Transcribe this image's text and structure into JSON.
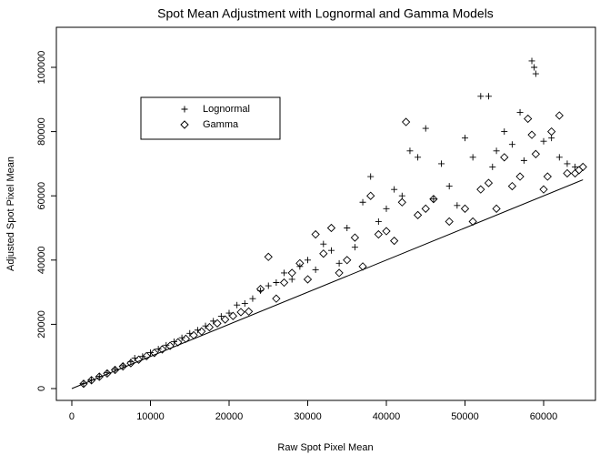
{
  "chart_data": {
    "type": "scatter",
    "title": "Spot Mean Adjustment with Lognormal and Gamma Models",
    "xlabel": "Raw Spot Pixel Mean",
    "ylabel": "Adjusted Spot Pixel Mean",
    "xlim": [
      -1965,
      66590
    ],
    "ylim": [
      -3683,
      112465
    ],
    "xticks": [
      0,
      10000,
      20000,
      30000,
      40000,
      50000,
      60000
    ],
    "yticks": [
      0,
      20000,
      40000,
      60000,
      80000,
      100000
    ],
    "legend": "top-left",
    "reference_line": {
      "x": [
        0,
        65000
      ],
      "y": [
        0,
        65000
      ]
    },
    "series": [
      {
        "name": "Lognormal",
        "marker": "plus",
        "color": "#000000",
        "x": [
          1500,
          2500,
          3500,
          4500,
          5500,
          6500,
          7500,
          8000,
          9000,
          10000,
          11000,
          12000,
          13000,
          14000,
          15000,
          16000,
          17000,
          18000,
          19000,
          20000,
          21000,
          22000,
          23000,
          24000,
          25000,
          26000,
          27000,
          28000,
          29000,
          30000,
          31000,
          32000,
          33000,
          34000,
          35000,
          36000,
          37000,
          38000,
          39000,
          40000,
          41000,
          42000,
          43000,
          44000,
          45000,
          46000,
          47000,
          48000,
          49000,
          50000,
          51000,
          52000,
          53000,
          54000,
          55000,
          56000,
          57000,
          58500,
          58800,
          59000,
          60000,
          61000,
          62000,
          63000,
          64000,
          57500,
          53500
        ],
        "y": [
          1600,
          2700,
          3800,
          4900,
          6000,
          7100,
          8300,
          9500,
          10000,
          11200,
          12300,
          13500,
          14600,
          15800,
          17200,
          18200,
          19500,
          21000,
          22500,
          23500,
          26000,
          26500,
          28000,
          30500,
          32000,
          33000,
          36000,
          34000,
          38000,
          40000,
          37000,
          45000,
          43000,
          39000,
          50000,
          44000,
          58000,
          66000,
          52000,
          56000,
          62000,
          60000,
          74000,
          72000,
          81000,
          59000,
          70000,
          63000,
          57000,
          78000,
          72000,
          91000,
          91000,
          74000,
          80000,
          76000,
          86000,
          102000,
          100000,
          98000,
          77000,
          78000,
          72000,
          70000,
          69000,
          71000,
          69000
        ]
      },
      {
        "name": "Gamma",
        "marker": "diamond",
        "color": "#000000",
        "x": [
          1500,
          2500,
          3500,
          4500,
          5500,
          6500,
          7500,
          8500,
          9500,
          10500,
          11500,
          12500,
          13500,
          14500,
          15500,
          16500,
          17500,
          18500,
          19500,
          20500,
          21500,
          22500,
          24000,
          25000,
          26000,
          27000,
          28000,
          29000,
          30000,
          31000,
          32000,
          33000,
          34000,
          35000,
          36000,
          37000,
          38000,
          39000,
          40000,
          41000,
          42000,
          42500,
          44000,
          45000,
          46000,
          48000,
          50000,
          51000,
          52000,
          53000,
          54000,
          55000,
          56000,
          57000,
          58000,
          58500,
          59000,
          60000,
          61000,
          62000,
          63000,
          64000,
          65000,
          64500,
          60500
        ],
        "y": [
          1500,
          2600,
          3700,
          4700,
          5800,
          6900,
          7900,
          9000,
          10100,
          11100,
          12200,
          13300,
          14400,
          15500,
          16600,
          17800,
          19100,
          20300,
          21500,
          22600,
          23800,
          24000,
          31000,
          41000,
          28000,
          33000,
          36000,
          39000,
          34000,
          48000,
          42000,
          50000,
          36000,
          40000,
          47000,
          38000,
          60000,
          48000,
          49000,
          46000,
          58000,
          83000,
          54000,
          56000,
          59000,
          52000,
          56000,
          52000,
          62000,
          64000,
          56000,
          72000,
          63000,
          66000,
          84000,
          79000,
          73000,
          62000,
          80000,
          85000,
          67000,
          67000,
          69000,
          68000,
          66000
        ]
      }
    ]
  }
}
